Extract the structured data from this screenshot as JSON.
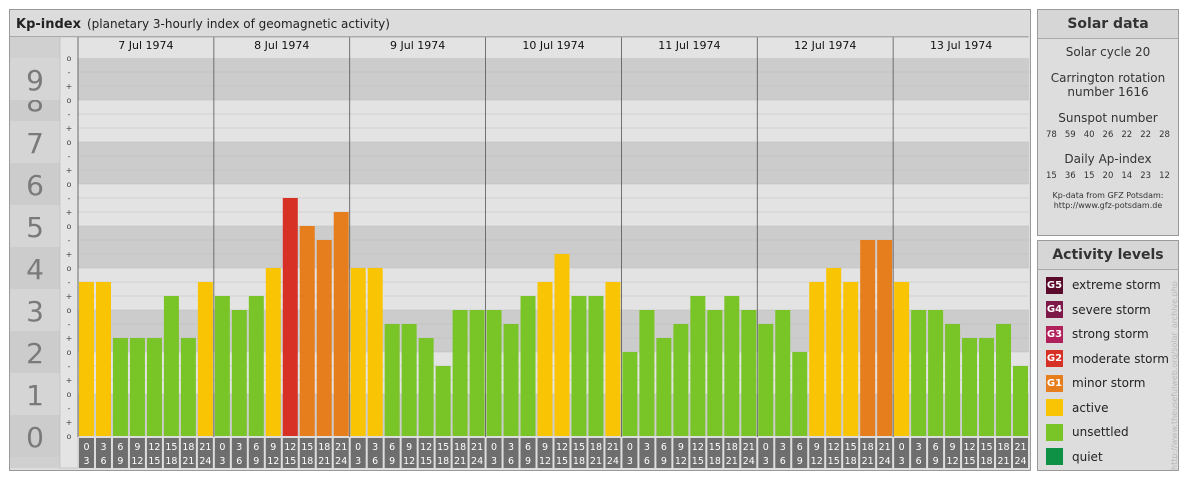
{
  "header": {
    "title": "Kp-index",
    "subtitle": "(planetary 3-hourly index of geomagnetic activity)"
  },
  "chart_data": {
    "type": "bar",
    "title": "Kp-index",
    "subtitle": "(planetary 3-hourly index of geomagnetic activity)",
    "ylim": [
      0,
      9
    ],
    "y_ticks": [
      "0",
      "1",
      "2",
      "3",
      "4",
      "5",
      "6",
      "7",
      "8",
      "9"
    ],
    "sub_ticks": [
      "+",
      "o",
      "-"
    ],
    "days": [
      "7 Jul 1974",
      "8 Jul 1974",
      "9 Jul 1974",
      "10 Jul 1974",
      "11 Jul 1974",
      "12 Jul 1974",
      "13 Jul 1974"
    ],
    "interval_labels": [
      [
        "0",
        "3"
      ],
      [
        "3",
        "6"
      ],
      [
        "6",
        "9"
      ],
      [
        "9",
        "12"
      ],
      [
        "12",
        "15"
      ],
      [
        "15",
        "18"
      ],
      [
        "18",
        "21"
      ],
      [
        "21",
        "24"
      ]
    ],
    "values": [
      3.667,
      3.667,
      2.333,
      2.333,
      2.333,
      3.333,
      2.333,
      3.667,
      3.333,
      3.0,
      3.333,
      4.0,
      5.667,
      5.0,
      4.667,
      5.333,
      4.0,
      4.0,
      2.667,
      2.667,
      2.333,
      1.667,
      3.0,
      3.0,
      3.0,
      2.667,
      3.333,
      3.667,
      4.333,
      3.333,
      3.333,
      3.667,
      2.0,
      3.0,
      2.333,
      2.667,
      3.333,
      3.0,
      3.333,
      3.0,
      2.667,
      3.0,
      2.0,
      3.667,
      4.0,
      3.667,
      4.667,
      4.667,
      3.667,
      3.0,
      3.0,
      2.667,
      2.333,
      2.333,
      2.667,
      1.667
    ],
    "colors": {
      "G5": "#5a0a2a",
      "G4": "#7e1848",
      "G3": "#b0205a",
      "G2": "#d73025",
      "G1": "#e67e1e",
      "active": "#f9c403",
      "unsettled": "#79c427",
      "quiet": "#0e9045"
    },
    "band_dark": "#cccccc",
    "band_light": "#e3e3e3",
    "grid_color": "#bdbdbd",
    "axis_bg": "#bfbfbf",
    "label_bg": "#6e6e6e"
  },
  "solar": {
    "title": "Solar data",
    "cycle": "Solar cycle 20",
    "carrington": "Carrington rotation number 1616",
    "sunspot_title": "Sunspot number",
    "sunspot_values": [
      "78",
      "59",
      "40",
      "26",
      "22",
      "22",
      "28"
    ],
    "ap_title": "Daily Ap-index",
    "ap_values": [
      "15",
      "36",
      "15",
      "20",
      "14",
      "23",
      "12"
    ],
    "credit_line1": "Kp-data from GFZ Potsdam:",
    "credit_line2": "http://www.gfz-potsdam.de"
  },
  "activity": {
    "title": "Activity levels",
    "levels": [
      {
        "badge": "G5",
        "label": "extreme storm",
        "color": "#5a0a2a"
      },
      {
        "badge": "G4",
        "label": "severe storm",
        "color": "#7e1848"
      },
      {
        "badge": "G3",
        "label": "strong storm",
        "color": "#b0205a"
      },
      {
        "badge": "G2",
        "label": "moderate storm",
        "color": "#d73025"
      },
      {
        "badge": "G1",
        "label": "minor storm",
        "color": "#e67e1e"
      },
      {
        "badge": "",
        "label": "active",
        "color": "#f9c403"
      },
      {
        "badge": "",
        "label": "unsettled",
        "color": "#79c427"
      },
      {
        "badge": "",
        "label": "quiet",
        "color": "#0e9045"
      }
    ]
  },
  "credit": "http://www.theusefulweb.org/solar_archive.php"
}
